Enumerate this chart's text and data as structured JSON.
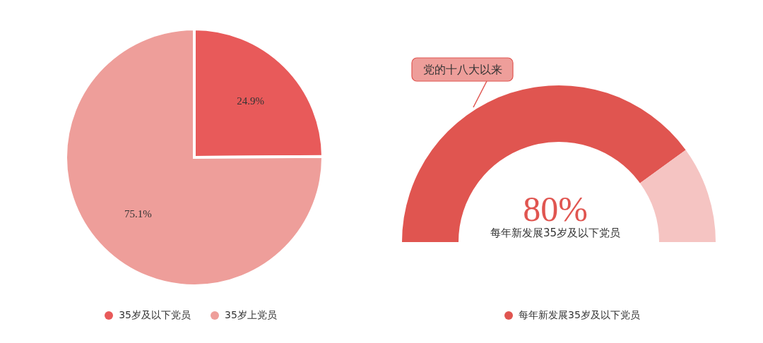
{
  "chart_data": [
    {
      "type": "pie",
      "categories": [
        "35岁及以下党员",
        "35岁上党员"
      ],
      "values": [
        24.9,
        75.1
      ],
      "colors": [
        "#e85a5a",
        "#ee9e9a"
      ],
      "value_labels": [
        "24.9%",
        "75.1%"
      ],
      "legend": "bottom"
    },
    {
      "type": "donut",
      "categories": [
        "每年新发展35岁及以下党员",
        null
      ],
      "values": [
        80,
        20
      ],
      "colors": [
        "#e05550",
        "#f5c4c2"
      ],
      "value_labels": [
        "80%",
        null
      ],
      "annotations": [
        "党的十八大以来"
      ],
      "legend": "bottom"
    }
  ]
}
